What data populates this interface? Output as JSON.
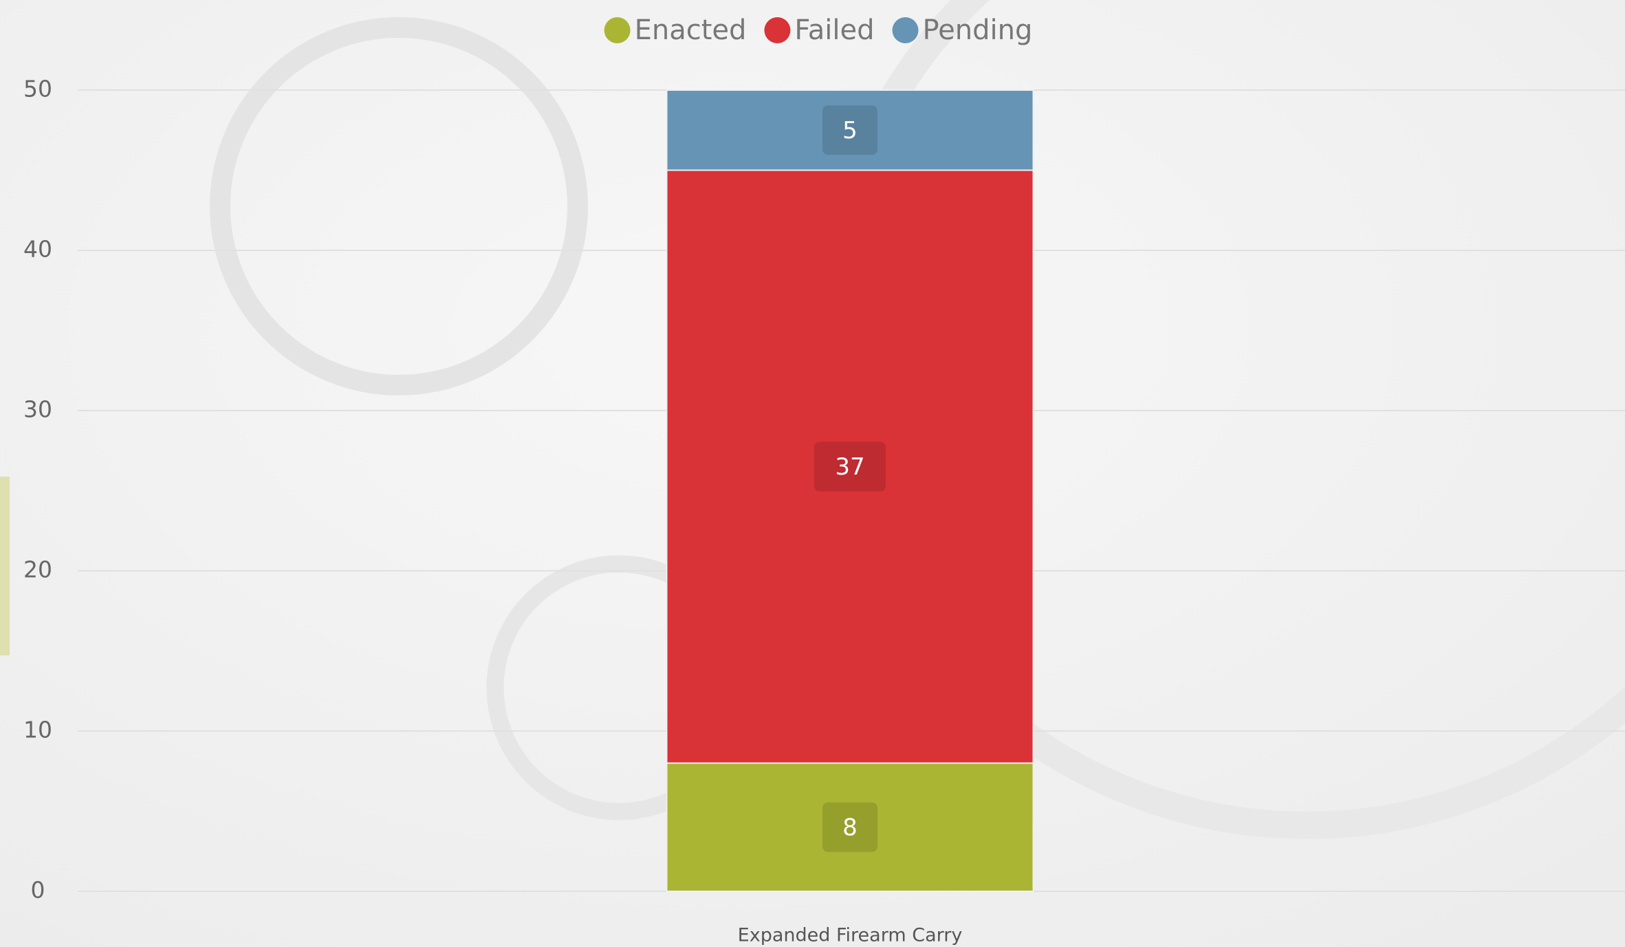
{
  "chart_data": {
    "type": "stacked_bar",
    "categories": [
      "Expanded Firearm Carry"
    ],
    "series": [
      {
        "name": "Enacted",
        "color": "#aab533",
        "values": [
          8
        ]
      },
      {
        "name": "Failed",
        "color": "#d93237",
        "values": [
          37
        ]
      },
      {
        "name": "Pending",
        "color": "#6694b5",
        "values": [
          5
        ]
      }
    ],
    "ylim": [
      0,
      50
    ],
    "yticks": [
      0,
      10,
      20,
      30,
      40,
      50
    ],
    "grid": true,
    "legend": "top"
  }
}
